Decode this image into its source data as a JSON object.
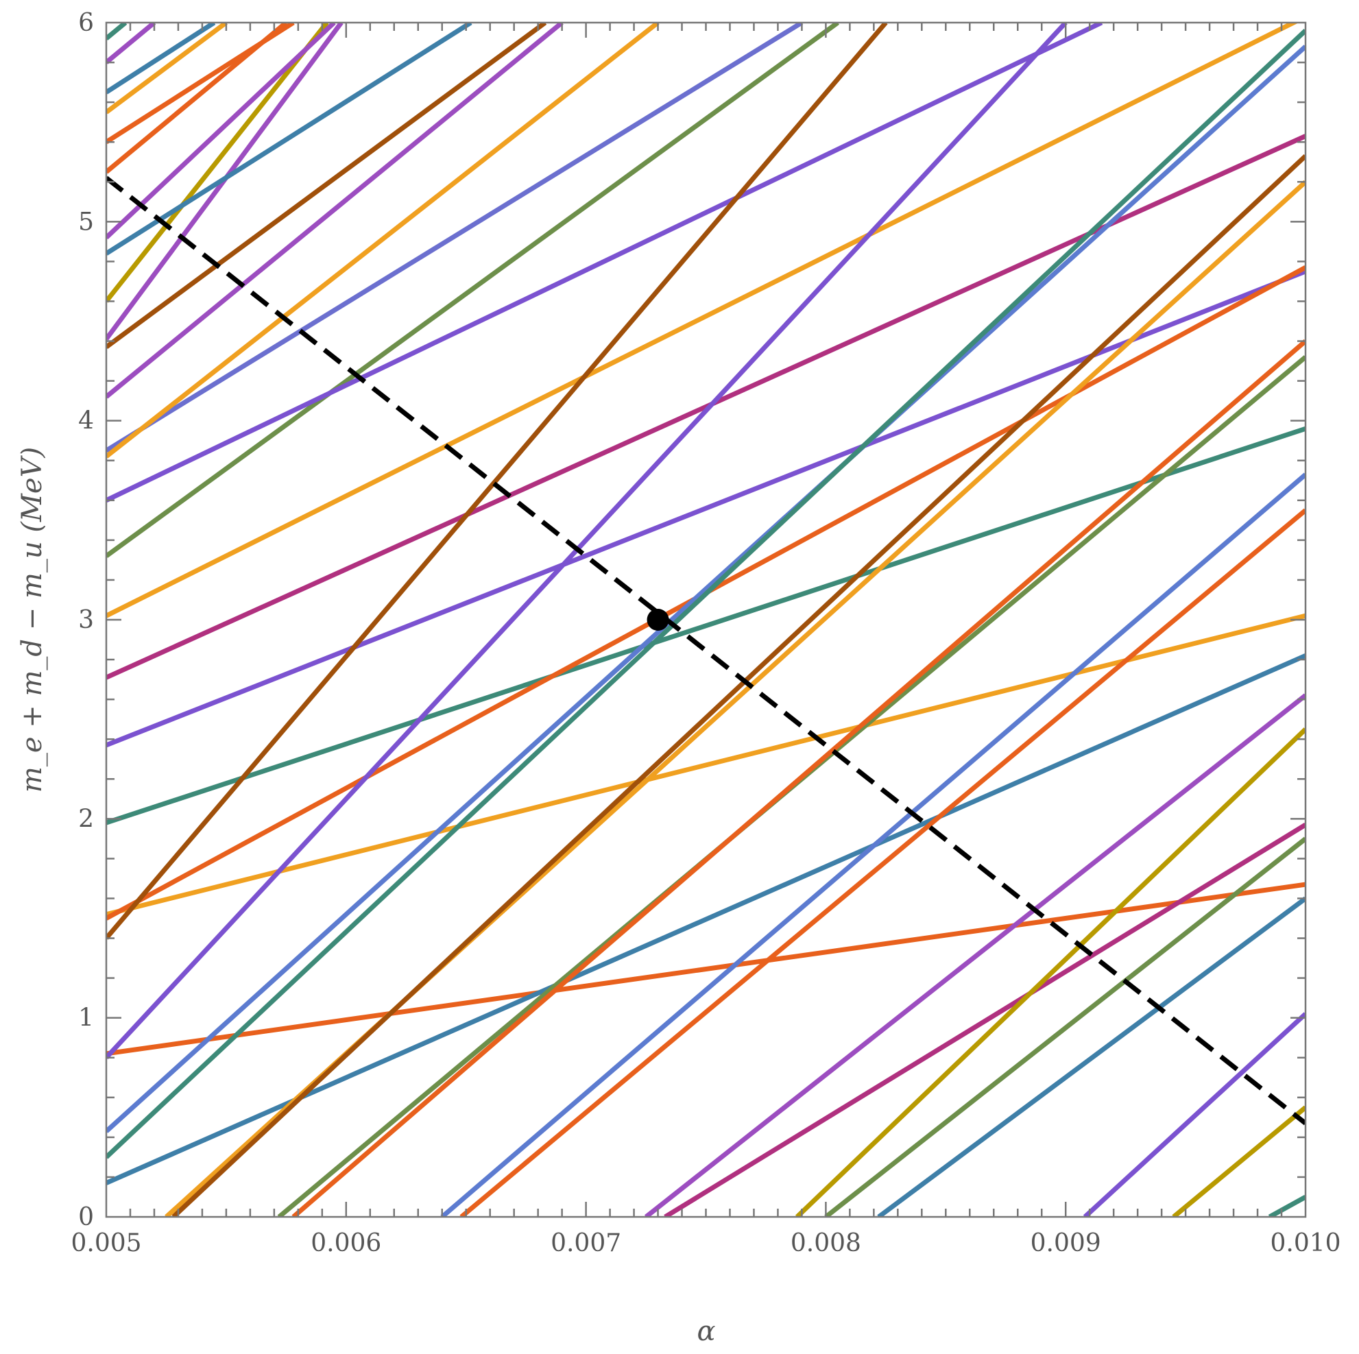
{
  "chart_data": {
    "type": "line",
    "title": "",
    "xlabel": "α",
    "ylabel": "m_e + m_d − m_u (MeV)",
    "xlim": [
      0.005,
      0.01
    ],
    "ylim": [
      0,
      6
    ],
    "x_ticks": [
      {
        "v": 0.005,
        "label": "0.005"
      },
      {
        "v": 0.006,
        "label": "0.006"
      },
      {
        "v": 0.007,
        "label": "0.007"
      },
      {
        "v": 0.008,
        "label": "0.008"
      },
      {
        "v": 0.009,
        "label": "0.009"
      },
      {
        "v": 0.01,
        "label": "0.010"
      }
    ],
    "y_ticks": [
      {
        "v": 0,
        "label": "0"
      },
      {
        "v": 1,
        "label": "1"
      },
      {
        "v": 2,
        "label": "2"
      },
      {
        "v": 3,
        "label": "3"
      },
      {
        "v": 4,
        "label": "4"
      },
      {
        "v": 5,
        "label": "5"
      },
      {
        "v": 6,
        "label": "6"
      }
    ],
    "grid": false,
    "reference_line": {
      "color": "#000000",
      "style": "dashed",
      "points": [
        [
          0.005,
          5.22
        ],
        [
          0.01,
          0.47
        ]
      ]
    },
    "marker": {
      "x": 0.0073,
      "y": 3.0,
      "color": "#000000"
    },
    "series": [
      {
        "color": "#E8601C",
        "points": [
          [
            0.005,
            0.82
          ],
          [
            0.01,
            1.67
          ]
        ]
      },
      {
        "color": "#F0A020",
        "points": [
          [
            0.005,
            1.52
          ],
          [
            0.01,
            3.02
          ]
        ]
      },
      {
        "color": "#3D8A78",
        "points": [
          [
            0.005,
            1.98
          ],
          [
            0.01,
            3.96
          ]
        ]
      },
      {
        "color": "#7B52D0",
        "points": [
          [
            0.005,
            2.37
          ],
          [
            0.01,
            4.75
          ]
        ]
      },
      {
        "color": "#B0307F",
        "points": [
          [
            0.005,
            2.71
          ],
          [
            0.01,
            5.43
          ]
        ]
      },
      {
        "color": "#F0A020",
        "points": [
          [
            0.005,
            3.02
          ],
          [
            0.01,
            6.03
          ]
        ]
      },
      {
        "color": "#6D8F4A",
        "points": [
          [
            0.005,
            3.32
          ],
          [
            0.00805,
            6.0
          ]
        ]
      },
      {
        "color": "#6B6FCF",
        "points": [
          [
            0.005,
            3.85
          ],
          [
            0.0079,
            6.0
          ]
        ]
      },
      {
        "color": "#F0A020",
        "points": [
          [
            0.005,
            3.82
          ],
          [
            0.0073,
            6.0
          ]
        ]
      },
      {
        "color": "#9C4DC0",
        "points": [
          [
            0.005,
            4.12
          ],
          [
            0.0069,
            6.0
          ]
        ]
      },
      {
        "color": "#A0500A",
        "points": [
          [
            0.005,
            4.37
          ],
          [
            0.00683,
            6.0
          ]
        ]
      },
      {
        "color": "#9C4DC0",
        "points": [
          [
            0.005,
            4.41
          ],
          [
            0.00598,
            6.0
          ]
        ]
      },
      {
        "color": "#B89A00",
        "points": [
          [
            0.005,
            4.6
          ],
          [
            0.00592,
            6.0
          ]
        ]
      },
      {
        "color": "#3E7FA8",
        "points": [
          [
            0.005,
            4.84
          ],
          [
            0.00652,
            6.0
          ]
        ]
      },
      {
        "color": "#9C4DC0",
        "points": [
          [
            0.005,
            4.92
          ],
          [
            0.00595,
            6.0
          ]
        ]
      },
      {
        "color": "#E8601C",
        "points": [
          [
            0.005,
            5.25
          ],
          [
            0.00575,
            6.0
          ]
        ]
      },
      {
        "color": "#E8601C",
        "points": [
          [
            0.005,
            5.4
          ],
          [
            0.00578,
            6.0
          ]
        ]
      },
      {
        "color": "#F0A020",
        "points": [
          [
            0.005,
            5.55
          ],
          [
            0.0055,
            6.0
          ]
        ]
      },
      {
        "color": "#3E7FA8",
        "points": [
          [
            0.005,
            5.65
          ],
          [
            0.00545,
            6.0
          ]
        ]
      },
      {
        "color": "#9C4DC0",
        "points": [
          [
            0.005,
            5.8
          ],
          [
            0.0052,
            6.0
          ]
        ]
      },
      {
        "color": "#3D8A78",
        "points": [
          [
            0.005,
            5.92
          ],
          [
            0.00508,
            6.0
          ]
        ]
      },
      {
        "color": "#7B52D0",
        "points": [
          [
            0.005,
            3.6
          ],
          [
            0.00915,
            6.0
          ]
        ]
      },
      {
        "color": "#E8601C",
        "points": [
          [
            0.005,
            1.5
          ],
          [
            0.01,
            4.77
          ]
        ]
      },
      {
        "color": "#A0500A",
        "points": [
          [
            0.005,
            1.4
          ],
          [
            0.00825,
            6.0
          ]
        ]
      },
      {
        "color": "#7B52D0",
        "points": [
          [
            0.005,
            0.8
          ],
          [
            0.009,
            6.0
          ]
        ]
      },
      {
        "color": "#5C7BD0",
        "points": [
          [
            0.005,
            0.43
          ],
          [
            0.01,
            5.88
          ]
        ]
      },
      {
        "color": "#3D8A78",
        "points": [
          [
            0.005,
            0.3
          ],
          [
            0.01,
            5.96
          ]
        ]
      },
      {
        "color": "#3E7FA8",
        "points": [
          [
            0.005,
            0.17
          ],
          [
            0.01,
            2.82
          ]
        ]
      },
      {
        "color": "#F0A020",
        "points": [
          [
            0.00525,
            0.0
          ],
          [
            0.01,
            5.2
          ]
        ]
      },
      {
        "color": "#A0500A",
        "points": [
          [
            0.00528,
            0.0
          ],
          [
            0.01,
            5.33
          ]
        ]
      },
      {
        "color": "#6D8F4A",
        "points": [
          [
            0.00572,
            0.0
          ],
          [
            0.01,
            4.32
          ]
        ]
      },
      {
        "color": "#E8601C",
        "points": [
          [
            0.00578,
            0.0
          ],
          [
            0.01,
            4.4
          ]
        ]
      },
      {
        "color": "#5C7BD0",
        "points": [
          [
            0.0064,
            0.0
          ],
          [
            0.01,
            3.73
          ]
        ]
      },
      {
        "color": "#E8601C",
        "points": [
          [
            0.00648,
            0.0
          ],
          [
            0.01,
            3.55
          ]
        ]
      },
      {
        "color": "#9C4DC0",
        "points": [
          [
            0.00725,
            0.0
          ],
          [
            0.01,
            2.62
          ]
        ]
      },
      {
        "color": "#B0307F",
        "points": [
          [
            0.00733,
            0.0
          ],
          [
            0.01,
            1.97
          ]
        ]
      },
      {
        "color": "#B89A00",
        "points": [
          [
            0.00788,
            0.0
          ],
          [
            0.01,
            2.45
          ]
        ]
      },
      {
        "color": "#6D8F4A",
        "points": [
          [
            0.008,
            0.0
          ],
          [
            0.01,
            1.9
          ]
        ]
      },
      {
        "color": "#3E7FA8",
        "points": [
          [
            0.00822,
            0.0
          ],
          [
            0.01,
            1.6
          ]
        ]
      },
      {
        "color": "#7B52D0",
        "points": [
          [
            0.00908,
            0.0
          ],
          [
            0.01,
            1.02
          ]
        ]
      },
      {
        "color": "#B89A00",
        "points": [
          [
            0.00945,
            0.0
          ],
          [
            0.01,
            0.55
          ]
        ]
      },
      {
        "color": "#3D8A78",
        "points": [
          [
            0.00985,
            0.0
          ],
          [
            0.01,
            0.1
          ]
        ]
      }
    ]
  }
}
